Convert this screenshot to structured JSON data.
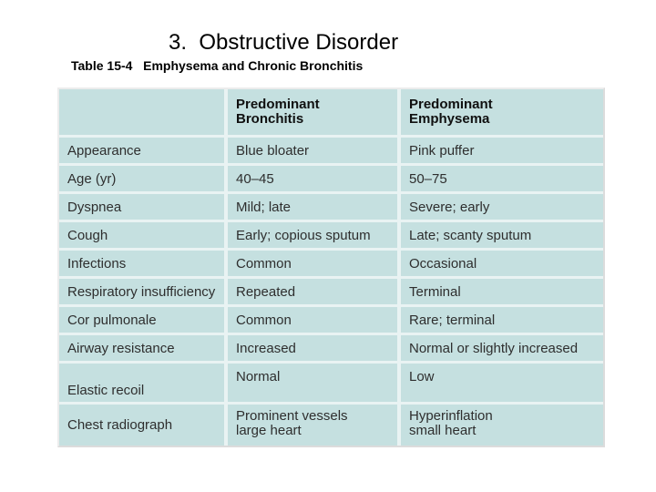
{
  "slide": {
    "title": "3.  Obstructive Disorder",
    "caption": "Table 15-4   Emphysema and Chronic Bronchitis"
  },
  "table": {
    "header": {
      "row_label": "",
      "bronchitis": "Predominant\nBronchitis",
      "emphysema": "Predominant\nEmphysema"
    },
    "rows": [
      {
        "label": "Appearance",
        "bronchitis": "Blue bloater",
        "emphysema": "Pink puffer"
      },
      {
        "label": "Age (yr)",
        "bronchitis": "40–45",
        "emphysema": "50–75"
      },
      {
        "label": "Dyspnea",
        "bronchitis": "Mild; late",
        "emphysema": "Severe; early"
      },
      {
        "label": "Cough",
        "bronchitis": "Early; copious sputum",
        "emphysema": "Late; scanty sputum"
      },
      {
        "label": "Infections",
        "bronchitis": "Common",
        "emphysema": "Occasional"
      },
      {
        "label": "Respiratory insufficiency",
        "bronchitis": "Repeated",
        "emphysema": "Terminal"
      },
      {
        "label": "Cor pulmonale",
        "bronchitis": "Common",
        "emphysema": "Rare; terminal"
      },
      {
        "label": "Airway resistance",
        "bronchitis": "Increased",
        "emphysema": "Normal or slightly increased"
      },
      {
        "label": "Elastic recoil",
        "bronchitis": "Normal",
        "emphysema": "Low"
      },
      {
        "label": "Chest radiograph",
        "bronchitis": "Prominent vessels\nlarge heart",
        "emphysema": "Hyperinflation\nsmall heart"
      }
    ],
    "colors": {
      "cell_bg": "#c5e0e0",
      "separator": "#e9f3f3",
      "text": "#2e2e2e"
    }
  }
}
